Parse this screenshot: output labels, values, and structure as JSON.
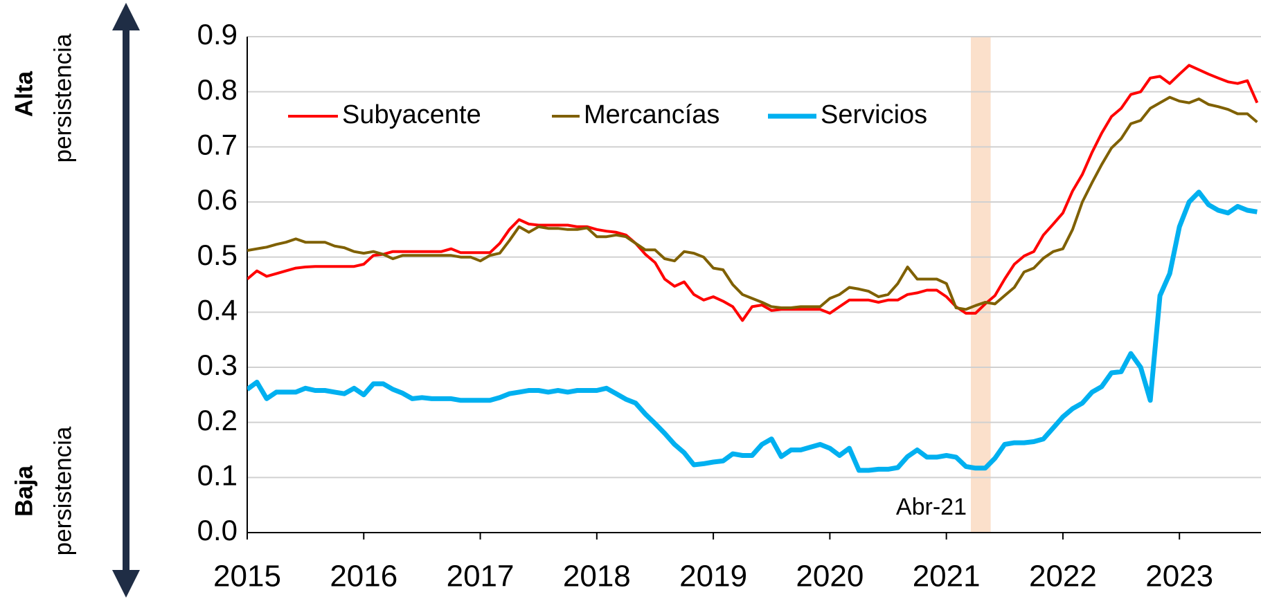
{
  "chart_data": {
    "type": "line",
    "xlim": [
      2015,
      2023.7
    ],
    "xticks": [
      2015,
      2016,
      2017,
      2018,
      2019,
      2020,
      2021,
      2022,
      2023
    ],
    "ylim": [
      0,
      0.9
    ],
    "yticks": [
      {
        "value": 0,
        "label": "0.0"
      },
      0.1,
      0.2,
      0.3,
      0.4,
      0.5,
      0.6,
      0.7,
      0.8,
      0.9
    ],
    "grid": true,
    "legend": "top-left",
    "left_labels": [
      {
        "bold": "Alta",
        "text": "persistencia"
      },
      {
        "bold": "Baja",
        "text": "persistencia"
      }
    ],
    "highlight": {
      "label": "Abr-21",
      "start": 2021.21,
      "end": 2021.38,
      "color": "#fbe0cb"
    },
    "x": [
      2015,
      2015.083,
      2015.167,
      2015.25,
      2015.333,
      2015.417,
      2015.5,
      2015.583,
      2015.667,
      2015.75,
      2015.833,
      2015.917,
      2016,
      2016.083,
      2016.167,
      2016.25,
      2016.333,
      2016.417,
      2016.5,
      2016.583,
      2016.667,
      2016.75,
      2016.833,
      2016.917,
      2017,
      2017.083,
      2017.167,
      2017.25,
      2017.333,
      2017.417,
      2017.5,
      2017.583,
      2017.667,
      2017.75,
      2017.833,
      2017.917,
      2018,
      2018.083,
      2018.167,
      2018.25,
      2018.333,
      2018.417,
      2018.5,
      2018.583,
      2018.667,
      2018.75,
      2018.833,
      2018.917,
      2019,
      2019.083,
      2019.167,
      2019.25,
      2019.333,
      2019.417,
      2019.5,
      2019.583,
      2019.667,
      2019.75,
      2019.833,
      2019.917,
      2020,
      2020.083,
      2020.167,
      2020.25,
      2020.333,
      2020.417,
      2020.5,
      2020.583,
      2020.667,
      2020.75,
      2020.833,
      2020.917,
      2021,
      2021.083,
      2021.167,
      2021.25,
      2021.333,
      2021.417,
      2021.5,
      2021.583,
      2021.667,
      2021.75,
      2021.833,
      2021.917,
      2022,
      2022.083,
      2022.167,
      2022.25,
      2022.333,
      2022.417,
      2022.5,
      2022.583,
      2022.667,
      2022.75,
      2022.833,
      2022.917,
      2023,
      2023.083,
      2023.167,
      2023.25,
      2023.333,
      2023.417,
      2023.5,
      2023.583,
      2023.667
    ],
    "series": [
      {
        "name": "Subyacente",
        "color": "#ff0000",
        "width": 4,
        "values": [
          0.46,
          0.475,
          0.465,
          0.47,
          0.475,
          0.48,
          0.482,
          0.483,
          0.483,
          0.483,
          0.483,
          0.483,
          0.487,
          0.503,
          0.505,
          0.51,
          0.51,
          0.51,
          0.51,
          0.51,
          0.51,
          0.515,
          0.508,
          0.508,
          0.508,
          0.508,
          0.525,
          0.55,
          0.568,
          0.56,
          0.558,
          0.558,
          0.558,
          0.558,
          0.555,
          0.555,
          0.55,
          0.547,
          0.545,
          0.54,
          0.525,
          0.505,
          0.49,
          0.46,
          0.447,
          0.455,
          0.432,
          0.422,
          0.428,
          0.42,
          0.41,
          0.385,
          0.41,
          0.413,
          0.403,
          0.405,
          0.405,
          0.405,
          0.405,
          0.405,
          0.398,
          0.41,
          0.422,
          0.422,
          0.422,
          0.418,
          0.422,
          0.422,
          0.432,
          0.435,
          0.44,
          0.44,
          0.428,
          0.41,
          0.398,
          0.398,
          0.415,
          0.43,
          0.46,
          0.487,
          0.502,
          0.51,
          0.54,
          0.56,
          0.58,
          0.62,
          0.65,
          0.69,
          0.725,
          0.755,
          0.77,
          0.795,
          0.8,
          0.825,
          0.828,
          0.815,
          0.832,
          0.848,
          0.84,
          0.832,
          0.825,
          0.818,
          0.815,
          0.82,
          0.78
        ]
      },
      {
        "name": "Mercancías",
        "color": "#7f6000",
        "width": 4,
        "values": [
          0.512,
          0.515,
          0.518,
          0.523,
          0.527,
          0.533,
          0.527,
          0.527,
          0.527,
          0.52,
          0.517,
          0.51,
          0.507,
          0.51,
          0.505,
          0.497,
          0.503,
          0.503,
          0.503,
          0.503,
          0.503,
          0.503,
          0.5,
          0.5,
          0.493,
          0.503,
          0.507,
          0.53,
          0.555,
          0.545,
          0.555,
          0.552,
          0.552,
          0.55,
          0.55,
          0.553,
          0.537,
          0.537,
          0.54,
          0.537,
          0.525,
          0.513,
          0.513,
          0.497,
          0.493,
          0.51,
          0.507,
          0.5,
          0.48,
          0.477,
          0.45,
          0.432,
          0.425,
          0.418,
          0.41,
          0.408,
          0.408,
          0.41,
          0.41,
          0.41,
          0.425,
          0.432,
          0.445,
          0.442,
          0.438,
          0.428,
          0.432,
          0.452,
          0.482,
          0.46,
          0.46,
          0.46,
          0.452,
          0.408,
          0.405,
          0.412,
          0.418,
          0.415,
          0.43,
          0.445,
          0.473,
          0.48,
          0.498,
          0.51,
          0.515,
          0.55,
          0.6,
          0.635,
          0.668,
          0.698,
          0.715,
          0.742,
          0.748,
          0.77,
          0.78,
          0.79,
          0.783,
          0.78,
          0.787,
          0.777,
          0.773,
          0.768,
          0.76,
          0.76,
          0.745
        ]
      },
      {
        "name": "Servicios",
        "color": "#00b0f0",
        "width": 7,
        "values": [
          0.26,
          0.273,
          0.243,
          0.255,
          0.255,
          0.255,
          0.262,
          0.258,
          0.258,
          0.255,
          0.252,
          0.262,
          0.25,
          0.27,
          0.27,
          0.26,
          0.253,
          0.243,
          0.245,
          0.243,
          0.243,
          0.243,
          0.24,
          0.24,
          0.24,
          0.24,
          0.245,
          0.252,
          0.255,
          0.258,
          0.258,
          0.255,
          0.258,
          0.255,
          0.258,
          0.258,
          0.258,
          0.262,
          0.252,
          0.242,
          0.235,
          0.215,
          0.198,
          0.18,
          0.16,
          0.145,
          0.123,
          0.125,
          0.128,
          0.13,
          0.143,
          0.14,
          0.14,
          0.16,
          0.17,
          0.138,
          0.15,
          0.15,
          0.155,
          0.16,
          0.153,
          0.14,
          0.153,
          0.113,
          0.113,
          0.115,
          0.115,
          0.118,
          0.138,
          0.15,
          0.137,
          0.137,
          0.14,
          0.137,
          0.12,
          0.117,
          0.117,
          0.135,
          0.16,
          0.163,
          0.163,
          0.165,
          0.17,
          0.19,
          0.21,
          0.225,
          0.235,
          0.255,
          0.265,
          0.29,
          0.292,
          0.325,
          0.3,
          0.24,
          0.43,
          0.47,
          0.555,
          0.6,
          0.618,
          0.595,
          0.585,
          0.58,
          0.592,
          0.585,
          0.582
        ]
      }
    ]
  }
}
